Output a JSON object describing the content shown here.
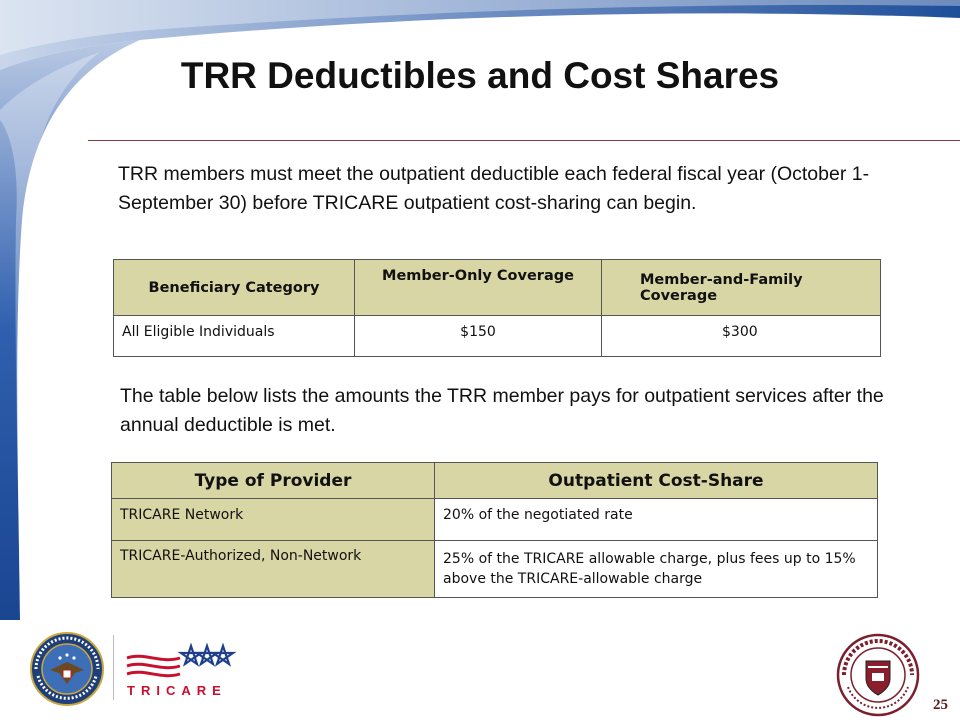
{
  "slide": {
    "title": "TRR Deductibles and Cost Shares",
    "intro": "TRR members must meet the outpatient deductible each federal fiscal year (October 1- September 30) before TRICARE outpatient cost-sharing can begin.",
    "middle": "The table below lists the amounts the TRR member pays for outpatient services after the annual deductible is met.",
    "page_number": "25"
  },
  "deductible_table": {
    "headers": [
      "Beneficiary Category",
      "Member-Only Coverage",
      "Member-and-Family Coverage"
    ],
    "rows": [
      [
        "All Eligible Individuals",
        "$150",
        "$300"
      ]
    ]
  },
  "cost_share_table": {
    "headers": [
      "Type of Provider",
      "Outpatient Cost-Share"
    ],
    "rows": [
      [
        "TRICARE Network",
        "20% of the negotiated rate"
      ],
      [
        "TRICARE-Authorized, Non-Network",
        "25% of the TRICARE allowable charge, plus fees up to 15% above the TRICARE-allowable charge"
      ]
    ]
  },
  "logos": {
    "dod_seal": "DEPARTMENT OF DEFENSE UNITED STATES OF AMERICA",
    "tricare_wordmark": "TRICARE",
    "university_seal": "TRICARE UNIVERSITY"
  },
  "colors": {
    "header_fill": "#d7d6a4",
    "accent_blue": "#1f4f9a",
    "rule": "#8a3a3a"
  }
}
